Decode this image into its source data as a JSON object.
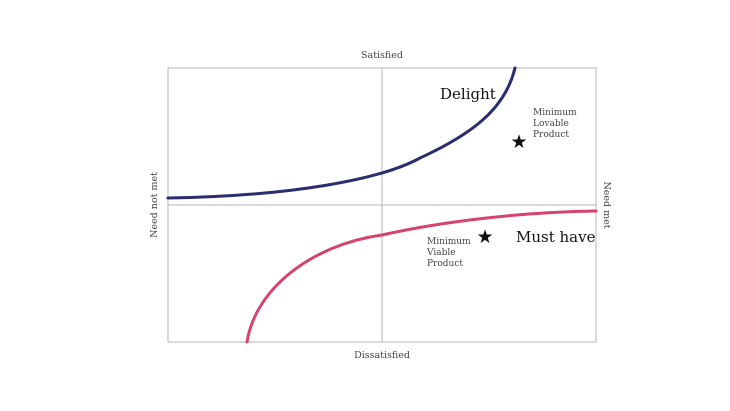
{
  "axes": {
    "top": "Satisfied",
    "bottom": "Dissatisfied",
    "left": "Need not met",
    "right": "Need met"
  },
  "curves": {
    "delight": {
      "label": "Delight",
      "color": "#2b2d6e"
    },
    "must_have": {
      "label": "Must have",
      "color": "#d6436e"
    }
  },
  "markers": {
    "mlp": {
      "icon": "star-icon",
      "lines": [
        "Minimum",
        "Lovable",
        "Product"
      ]
    },
    "mvp": {
      "icon": "star-icon",
      "lines": [
        "Minimum",
        "Viable",
        "Product"
      ]
    }
  },
  "colors": {
    "frame": "#b5b5b5",
    "axis": "#b5b5b5"
  }
}
